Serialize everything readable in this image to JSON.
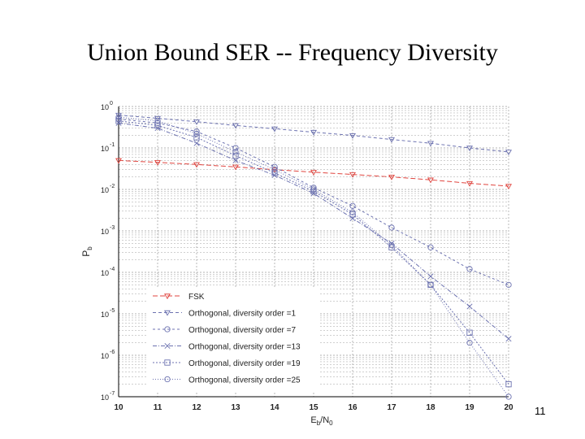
{
  "slide": {
    "title": "Union Bound SER -- Frequency Diversity",
    "page_number": "11"
  },
  "chart_data": {
    "type": "line",
    "title": "",
    "xlabel_main": "E",
    "xlabel_sub1": "b",
    "xlabel_mid": "/N",
    "xlabel_sub2": "0",
    "ylabel_main": "P",
    "ylabel_sub": "b",
    "xlim": [
      10,
      20
    ],
    "ylim_log10": [
      -7,
      0
    ],
    "y_scale": "log",
    "grid": true,
    "x_ticks": [
      "10",
      "11",
      "12",
      "13",
      "14",
      "15",
      "16",
      "17",
      "18",
      "19",
      "20"
    ],
    "y_tick_exponents": [
      "0",
      "-1",
      "-2",
      "-3",
      "-4",
      "-5",
      "-6",
      "-7"
    ],
    "legend_position": "lower-left",
    "series": [
      {
        "name": "FSK",
        "color": "#e0453f",
        "dash": "6,3",
        "marker": "tri-down",
        "x": [
          10,
          11,
          12,
          13,
          14,
          15,
          16,
          17,
          18,
          19,
          20
        ],
        "y": [
          0.05,
          0.045,
          0.04,
          0.035,
          0.03,
          0.026,
          0.023,
          0.02,
          0.017,
          0.014,
          0.012
        ]
      },
      {
        "name": "Orthogonal, diversity order =1",
        "color": "#6c72b0",
        "dash": "4,3",
        "marker": "tri-down",
        "x": [
          10,
          11,
          12,
          13,
          14,
          15,
          16,
          17,
          18,
          19,
          20
        ],
        "y": [
          0.62,
          0.52,
          0.43,
          0.35,
          0.29,
          0.24,
          0.2,
          0.16,
          0.13,
          0.1,
          0.08
        ]
      },
      {
        "name": "Orthogonal, diversity order =7",
        "color": "#6c72b0",
        "dash": "3,3",
        "marker": "circle",
        "x": [
          10,
          11,
          12,
          13,
          14,
          15,
          16,
          17,
          18,
          19,
          20
        ],
        "y": [
          0.5,
          0.4,
          0.25,
          0.1,
          0.035,
          0.011,
          0.004,
          0.0012,
          0.0004,
          0.00012,
          5e-05
        ]
      },
      {
        "name": "Orthogonal, diversity order =13",
        "color": "#6c72b0",
        "dash": "5,2,1,2",
        "marker": "x",
        "x": [
          10,
          11,
          12,
          13,
          14,
          15,
          16,
          17,
          18,
          19,
          20
        ],
        "y": [
          0.4,
          0.3,
          0.13,
          0.05,
          0.022,
          0.008,
          0.002,
          0.0005,
          8e-05,
          1.5e-05,
          2.5e-06
        ]
      },
      {
        "name": "Orthogonal, diversity order =19",
        "color": "#6c72b0",
        "dash": "2,2",
        "marker": "square",
        "x": [
          10,
          11,
          12,
          13,
          14,
          15,
          16,
          17,
          18,
          19,
          20
        ],
        "y": [
          0.45,
          0.35,
          0.18,
          0.065,
          0.025,
          0.009,
          0.0025,
          0.0004,
          5e-05,
          3.5e-06,
          2e-07
        ]
      },
      {
        "name": "Orthogonal, diversity order =25",
        "color": "#6c72b0",
        "dash": "1,2",
        "marker": "circle",
        "x": [
          10,
          11,
          12,
          13,
          14,
          15,
          16,
          17,
          18,
          19,
          20
        ],
        "y": [
          0.55,
          0.45,
          0.22,
          0.08,
          0.03,
          0.01,
          0.0028,
          0.00045,
          5e-05,
          2e-06,
          1e-07
        ]
      }
    ]
  }
}
